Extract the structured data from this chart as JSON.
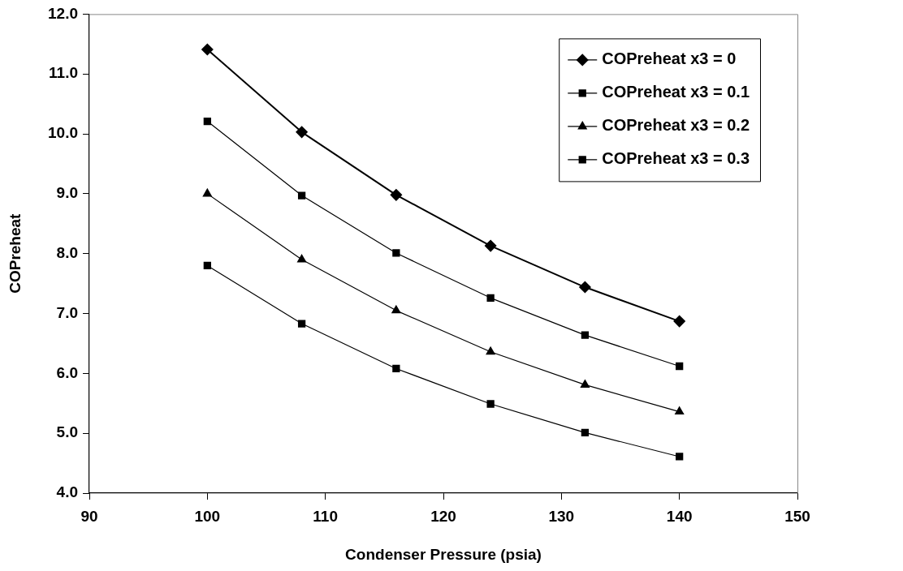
{
  "chart_data": {
    "type": "line",
    "xlabel": "Condenser Pressure (psia)",
    "ylabel": "COPreheat",
    "x": [
      100,
      108,
      116,
      124,
      132,
      140
    ],
    "series": [
      {
        "name": "COPreheat x3 = 0",
        "color": "#000000",
        "marker": "diamond",
        "values": [
          11.41,
          10.03,
          8.98,
          8.13,
          7.44,
          6.87
        ]
      },
      {
        "name": "COPreheat x3 = 0.1",
        "color": "#000000",
        "marker": "square",
        "values": [
          10.21,
          8.97,
          8.01,
          7.26,
          6.64,
          6.12
        ]
      },
      {
        "name": "COPreheat x3 = 0.2",
        "color": "#000000",
        "marker": "triangle",
        "values": [
          9.0,
          7.9,
          7.05,
          6.36,
          5.81,
          5.36
        ]
      },
      {
        "name": "COPreheat x3 = 0.3",
        "color": "#000000",
        "marker": "square",
        "values": [
          7.8,
          6.83,
          6.08,
          5.49,
          5.01,
          4.61
        ]
      }
    ],
    "xlim": [
      90,
      150
    ],
    "xticks": [
      90,
      100,
      110,
      120,
      130,
      140,
      150
    ],
    "ylim": [
      4,
      12
    ],
    "yticks": [
      {
        "value": 4,
        "label": "4.0"
      },
      {
        "value": 5,
        "label": "5.0"
      },
      {
        "value": 6,
        "label": "6.0"
      },
      {
        "value": 7,
        "label": "7.0"
      },
      {
        "value": 8,
        "label": "8.0"
      },
      {
        "value": 9,
        "label": "9.0"
      },
      {
        "value": 10,
        "label": "10.0"
      },
      {
        "value": 11,
        "label": "11.0"
      },
      {
        "value": 12,
        "label": "12.0"
      }
    ],
    "grid": false,
    "legend": "top right",
    "line_style": "solid"
  }
}
